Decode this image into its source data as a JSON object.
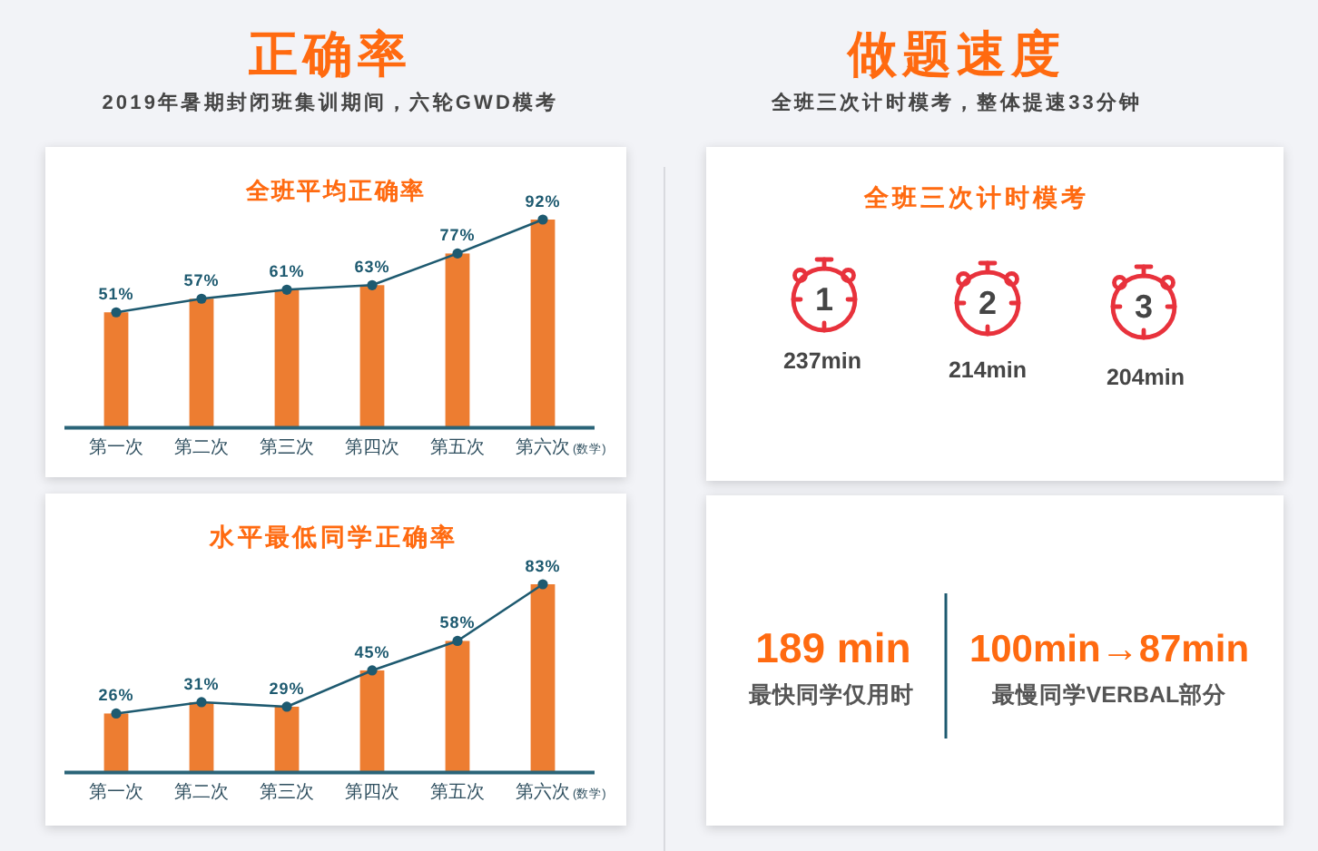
{
  "chart_data": [
    {
      "type": "other",
      "title": "正确率",
      "subtitle": "2019年暑期封闭班集训期间，六轮GWD模考"
    },
    {
      "type": "bar",
      "title": "全班平均正确率",
      "categories": [
        "第一次",
        "第二次",
        "第三次",
        "第四次",
        "第五次",
        "第六次(数学)"
      ],
      "marker": "circle",
      "series": [
        {
          "type": "bar",
          "color": "#ed7d31",
          "values": [
            51,
            57,
            61,
            63,
            77,
            92
          ]
        },
        {
          "type": "line",
          "color": "#1e5a70",
          "values": [
            51,
            57,
            61,
            63,
            77,
            92
          ],
          "value_labels": [
            "51%",
            "57%",
            "61%",
            "63%",
            "77%",
            "92%"
          ]
        }
      ]
    },
    {
      "type": "bar",
      "title": "水平最低同学正确率",
      "categories": [
        "第一次",
        "第二次",
        "第三次",
        "第四次",
        "第五次",
        "第六次(数学)"
      ],
      "marker": "circle",
      "series": [
        {
          "type": "bar",
          "color": "#ed7d31",
          "values": [
            26,
            31,
            29,
            45,
            58,
            83
          ]
        },
        {
          "type": "line",
          "color": "#1e5a70",
          "values": [
            26,
            31,
            29,
            45,
            58,
            83
          ],
          "value_labels": [
            "26%",
            "31%",
            "29%",
            "45%",
            "58%",
            "83%"
          ]
        }
      ]
    },
    {
      "type": "other",
      "title": "做题速度",
      "subtitle": "全班三次计时模考，整体提速33分钟"
    },
    {
      "type": "other",
      "title": "全班三次计时模考",
      "annotations": [
        "1",
        "237min",
        "2",
        "214min",
        "3",
        "204min"
      ]
    },
    {
      "type": "other",
      "annotations": [
        "189 min",
        "最快同学仅用时",
        "100min→87min",
        "最慢同学VERBAL部分"
      ]
    }
  ]
}
